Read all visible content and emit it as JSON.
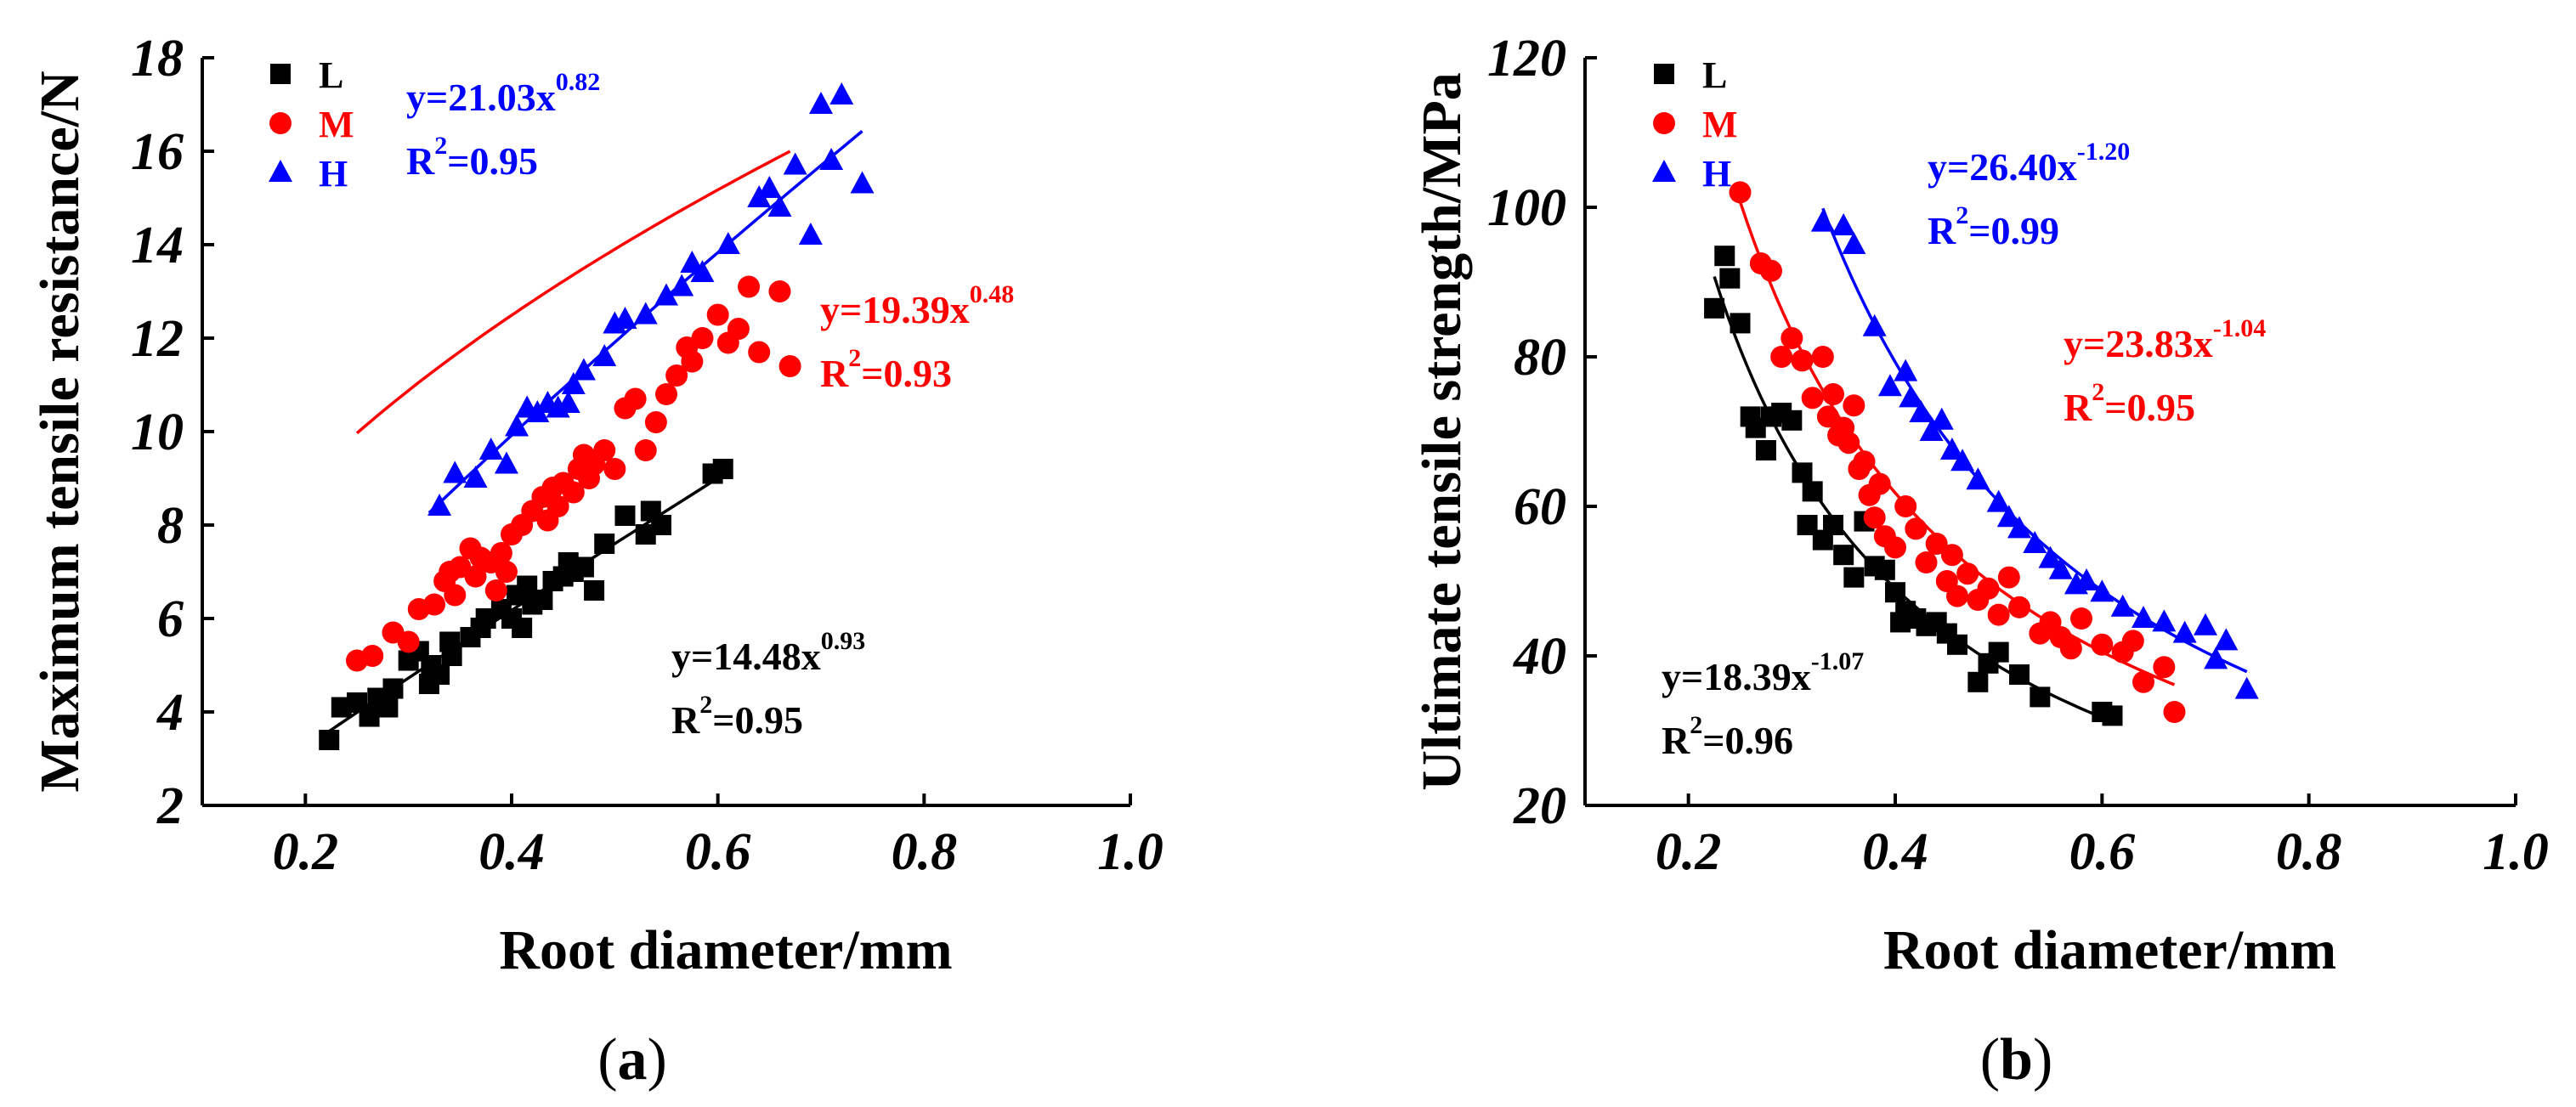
{
  "chart_data": [
    {
      "id": "a",
      "type": "scatter",
      "panel_label": "(a)",
      "panel_letter": "a",
      "xlabel": "Root diameter/mm",
      "ylabel": "Maximum tensile resistance/N",
      "xlim": [
        0.1,
        1.0
      ],
      "ylim": [
        2,
        18
      ],
      "xticks": [
        "0.2",
        "0.4",
        "0.6",
        "0.8",
        "1.0"
      ],
      "xtick_values": [
        0.2,
        0.4,
        0.6,
        0.8,
        1.0
      ],
      "yticks": [
        "2",
        "4",
        "6",
        "8",
        "10",
        "12",
        "14",
        "16",
        "18"
      ],
      "ytick_values": [
        2,
        4,
        6,
        8,
        10,
        12,
        14,
        16,
        18
      ],
      "legend": [
        "L",
        "M",
        "H"
      ],
      "series": [
        {
          "name": "L",
          "marker": "square",
          "color": "#000000",
          "fit": {
            "a": 14.48,
            "b": 0.93,
            "x_range": [
              0.22,
              0.61
            ]
          },
          "equation": {
            "prefix": "y=14.48x",
            "exponent": "0.93",
            "r2_prefix": "R",
            "r2_exp": "2",
            "r2_suffix": "=0.95"
          },
          "points": [
            [
              0.223,
              3.4
            ],
            [
              0.235,
              4.1
            ],
            [
              0.25,
              4.2
            ],
            [
              0.262,
              3.9
            ],
            [
              0.27,
              4.3
            ],
            [
              0.28,
              4.1
            ],
            [
              0.285,
              4.5
            ],
            [
              0.3,
              5.1
            ],
            [
              0.31,
              5.3
            ],
            [
              0.32,
              4.6
            ],
            [
              0.322,
              5.0
            ],
            [
              0.33,
              4.8
            ],
            [
              0.34,
              5.5
            ],
            [
              0.342,
              5.2
            ],
            [
              0.36,
              5.6
            ],
            [
              0.37,
              5.8
            ],
            [
              0.375,
              6.0
            ],
            [
              0.39,
              6.2
            ],
            [
              0.4,
              6.0
            ],
            [
              0.405,
              6.5
            ],
            [
              0.41,
              5.8
            ],
            [
              0.415,
              6.7
            ],
            [
              0.42,
              6.3
            ],
            [
              0.43,
              6.4
            ],
            [
              0.44,
              6.8
            ],
            [
              0.45,
              6.9
            ],
            [
              0.455,
              7.2
            ],
            [
              0.46,
              7.0
            ],
            [
              0.47,
              7.1
            ],
            [
              0.48,
              6.6
            ],
            [
              0.49,
              7.6
            ],
            [
              0.51,
              8.2
            ],
            [
              0.53,
              7.8
            ],
            [
              0.535,
              8.3
            ],
            [
              0.545,
              8.0
            ],
            [
              0.595,
              9.1
            ],
            [
              0.605,
              9.2
            ]
          ]
        },
        {
          "name": "M",
          "marker": "circle",
          "color": "#ff0000",
          "fit": {
            "a": 19.39,
            "b": 0.48,
            "x_range": [
              0.25,
              0.67
            ]
          },
          "equation": {
            "prefix": "y=19.39x",
            "exponent": "0.48",
            "r2_prefix": "R",
            "r2_exp": "2",
            "r2_suffix": "=0.93"
          },
          "points": [
            [
              0.25,
              5.1
            ],
            [
              0.265,
              5.2
            ],
            [
              0.285,
              5.7
            ],
            [
              0.3,
              5.5
            ],
            [
              0.31,
              6.2
            ],
            [
              0.325,
              6.3
            ],
            [
              0.335,
              6.8
            ],
            [
              0.34,
              7.0
            ],
            [
              0.345,
              6.5
            ],
            [
              0.35,
              7.1
            ],
            [
              0.36,
              7.5
            ],
            [
              0.365,
              6.9
            ],
            [
              0.37,
              7.3
            ],
            [
              0.38,
              7.2
            ],
            [
              0.385,
              6.6
            ],
            [
              0.39,
              7.4
            ],
            [
              0.395,
              7.0
            ],
            [
              0.4,
              7.8
            ],
            [
              0.41,
              8.0
            ],
            [
              0.42,
              8.3
            ],
            [
              0.43,
              8.6
            ],
            [
              0.435,
              8.1
            ],
            [
              0.44,
              8.8
            ],
            [
              0.445,
              8.4
            ],
            [
              0.45,
              8.9
            ],
            [
              0.46,
              8.7
            ],
            [
              0.465,
              9.2
            ],
            [
              0.47,
              9.5
            ],
            [
              0.475,
              9.0
            ],
            [
              0.48,
              9.3
            ],
            [
              0.49,
              9.6
            ],
            [
              0.5,
              9.2
            ],
            [
              0.51,
              10.5
            ],
            [
              0.52,
              10.7
            ],
            [
              0.53,
              9.6
            ],
            [
              0.54,
              10.2
            ],
            [
              0.55,
              10.8
            ],
            [
              0.56,
              11.2
            ],
            [
              0.57,
              11.8
            ],
            [
              0.575,
              11.5
            ],
            [
              0.585,
              12.0
            ],
            [
              0.6,
              12.5
            ],
            [
              0.61,
              11.9
            ],
            [
              0.62,
              12.2
            ],
            [
              0.63,
              13.1
            ],
            [
              0.64,
              11.7
            ],
            [
              0.66,
              13.0
            ],
            [
              0.67,
              11.4
            ]
          ]
        },
        {
          "name": "H",
          "marker": "triangle",
          "color": "#0000ff",
          "fit": {
            "a": 21.03,
            "b": 0.82,
            "x_range": [
              0.32,
              0.74
            ]
          },
          "equation": {
            "prefix": "y=21.03x",
            "exponent": "0.82",
            "r2_prefix": "R",
            "r2_exp": "2",
            "r2_suffix": "=0.95"
          },
          "points": [
            [
              0.33,
              8.4
            ],
            [
              0.345,
              9.1
            ],
            [
              0.365,
              9.0
            ],
            [
              0.38,
              9.6
            ],
            [
              0.395,
              9.3
            ],
            [
              0.405,
              10.1
            ],
            [
              0.415,
              10.5
            ],
            [
              0.425,
              10.4
            ],
            [
              0.435,
              10.6
            ],
            [
              0.445,
              10.5
            ],
            [
              0.455,
              10.6
            ],
            [
              0.46,
              11.0
            ],
            [
              0.47,
              11.3
            ],
            [
              0.49,
              11.6
            ],
            [
              0.5,
              12.3
            ],
            [
              0.51,
              12.4
            ],
            [
              0.53,
              12.5
            ],
            [
              0.55,
              12.9
            ],
            [
              0.565,
              13.1
            ],
            [
              0.575,
              13.6
            ],
            [
              0.585,
              13.4
            ],
            [
              0.61,
              14.0
            ],
            [
              0.64,
              15.0
            ],
            [
              0.65,
              15.2
            ],
            [
              0.66,
              14.8
            ],
            [
              0.675,
              15.7
            ],
            [
              0.69,
              14.2
            ],
            [
              0.7,
              17.0
            ],
            [
              0.71,
              15.8
            ],
            [
              0.72,
              17.2
            ],
            [
              0.74,
              15.3
            ]
          ]
        }
      ]
    },
    {
      "id": "b",
      "type": "scatter",
      "panel_label": "(b)",
      "panel_letter": "b",
      "xlabel": "Root diameter/mm",
      "ylabel": "Ultimate tensile strength/MPa",
      "xlim": [
        0.1,
        1.0
      ],
      "ylim": [
        20,
        120
      ],
      "xticks": [
        "0.2",
        "0.4",
        "0.6",
        "0.8",
        "1.0"
      ],
      "xtick_values": [
        0.2,
        0.4,
        0.6,
        0.8,
        1.0
      ],
      "yticks": [
        "20",
        "40",
        "60",
        "80",
        "100",
        "120"
      ],
      "ytick_values": [
        20,
        40,
        60,
        80,
        100,
        120
      ],
      "legend": [
        "L",
        "M",
        "H"
      ],
      "series": [
        {
          "name": "L",
          "marker": "square",
          "color": "#000000",
          "fit": {
            "a": 18.39,
            "b": -1.07,
            "x_range": [
              0.225,
              0.605
            ]
          },
          "equation": {
            "prefix": "y=18.39x",
            "exponent": "-1.07",
            "r2_prefix": "R",
            "r2_exp": "2",
            "r2_suffix": "=0.96"
          },
          "points": [
            [
              0.225,
              86.5
            ],
            [
              0.235,
              93.5
            ],
            [
              0.24,
              90.5
            ],
            [
              0.25,
              84.5
            ],
            [
              0.26,
              72.0
            ],
            [
              0.265,
              70.5
            ],
            [
              0.275,
              67.5
            ],
            [
              0.28,
              72.0
            ],
            [
              0.29,
              72.5
            ],
            [
              0.3,
              71.5
            ],
            [
              0.31,
              64.5
            ],
            [
              0.315,
              57.5
            ],
            [
              0.32,
              62.0
            ],
            [
              0.33,
              55.5
            ],
            [
              0.34,
              57.5
            ],
            [
              0.35,
              53.5
            ],
            [
              0.36,
              50.5
            ],
            [
              0.37,
              58.0
            ],
            [
              0.38,
              52.0
            ],
            [
              0.39,
              51.5
            ],
            [
              0.4,
              48.5
            ],
            [
              0.405,
              44.5
            ],
            [
              0.41,
              46.0
            ],
            [
              0.42,
              45.0
            ],
            [
              0.43,
              44.0
            ],
            [
              0.44,
              44.5
            ],
            [
              0.45,
              43.0
            ],
            [
              0.46,
              41.5
            ],
            [
              0.48,
              36.5
            ],
            [
              0.49,
              39.0
            ],
            [
              0.5,
              40.5
            ],
            [
              0.52,
              37.5
            ],
            [
              0.54,
              34.5
            ],
            [
              0.6,
              32.5
            ],
            [
              0.61,
              32.0
            ]
          ]
        },
        {
          "name": "M",
          "marker": "circle",
          "color": "#ff0000",
          "fit": {
            "a": 23.83,
            "b": -1.04,
            "x_range": [
              0.25,
              0.67
            ]
          },
          "equation": {
            "prefix": "y=23.83x",
            "exponent": "-1.04",
            "r2_prefix": "R",
            "r2_exp": "2",
            "r2_suffix": "=0.95"
          },
          "points": [
            [
              0.25,
              102.0
            ],
            [
              0.27,
              92.5
            ],
            [
              0.28,
              91.5
            ],
            [
              0.29,
              80.0
            ],
            [
              0.3,
              82.5
            ],
            [
              0.31,
              79.5
            ],
            [
              0.32,
              74.5
            ],
            [
              0.33,
              80.0
            ],
            [
              0.335,
              72.0
            ],
            [
              0.34,
              75.0
            ],
            [
              0.345,
              69.5
            ],
            [
              0.35,
              70.5
            ],
            [
              0.355,
              68.5
            ],
            [
              0.36,
              73.5
            ],
            [
              0.365,
              65.0
            ],
            [
              0.37,
              66.0
            ],
            [
              0.375,
              61.5
            ],
            [
              0.38,
              58.5
            ],
            [
              0.385,
              63.0
            ],
            [
              0.39,
              56.0
            ],
            [
              0.4,
              54.5
            ],
            [
              0.41,
              60.0
            ],
            [
              0.42,
              57.0
            ],
            [
              0.43,
              52.5
            ],
            [
              0.44,
              55.0
            ],
            [
              0.45,
              50.0
            ],
            [
              0.455,
              53.5
            ],
            [
              0.46,
              48.0
            ],
            [
              0.47,
              51.0
            ],
            [
              0.48,
              47.5
            ],
            [
              0.49,
              49.0
            ],
            [
              0.5,
              45.5
            ],
            [
              0.51,
              50.5
            ],
            [
              0.52,
              46.5
            ],
            [
              0.54,
              43.0
            ],
            [
              0.55,
              44.5
            ],
            [
              0.56,
              42.5
            ],
            [
              0.57,
              41.0
            ],
            [
              0.58,
              45.0
            ],
            [
              0.6,
              41.5
            ],
            [
              0.62,
              40.5
            ],
            [
              0.63,
              42.0
            ],
            [
              0.64,
              36.5
            ],
            [
              0.66,
              38.5
            ],
            [
              0.67,
              32.5
            ]
          ]
        },
        {
          "name": "H",
          "marker": "triangle",
          "color": "#0000ff",
          "fit": {
            "a": 26.4,
            "b": -1.2,
            "x_range": [
              0.33,
              0.74
            ]
          },
          "equation": {
            "prefix": "y=26.40x",
            "exponent": "-1.20",
            "r2_prefix": "R",
            "r2_exp": "2",
            "r2_suffix": "=0.99"
          },
          "points": [
            [
              0.33,
              98.0
            ],
            [
              0.35,
              97.5
            ],
            [
              0.36,
              95.0
            ],
            [
              0.38,
              84.0
            ],
            [
              0.395,
              76.0
            ],
            [
              0.41,
              78.0
            ],
            [
              0.415,
              74.5
            ],
            [
              0.425,
              72.5
            ],
            [
              0.435,
              70.0
            ],
            [
              0.445,
              71.5
            ],
            [
              0.455,
              67.5
            ],
            [
              0.465,
              66.0
            ],
            [
              0.48,
              63.5
            ],
            [
              0.5,
              60.5
            ],
            [
              0.51,
              58.5
            ],
            [
              0.52,
              57.0
            ],
            [
              0.535,
              55.0
            ],
            [
              0.55,
              53.0
            ],
            [
              0.56,
              51.5
            ],
            [
              0.575,
              49.5
            ],
            [
              0.585,
              50.0
            ],
            [
              0.6,
              48.5
            ],
            [
              0.62,
              46.5
            ],
            [
              0.64,
              45.0
            ],
            [
              0.66,
              44.5
            ],
            [
              0.68,
              43.0
            ],
            [
              0.7,
              44.0
            ],
            [
              0.71,
              39.5
            ],
            [
              0.72,
              42.0
            ],
            [
              0.74,
              35.5
            ]
          ]
        }
      ]
    }
  ]
}
